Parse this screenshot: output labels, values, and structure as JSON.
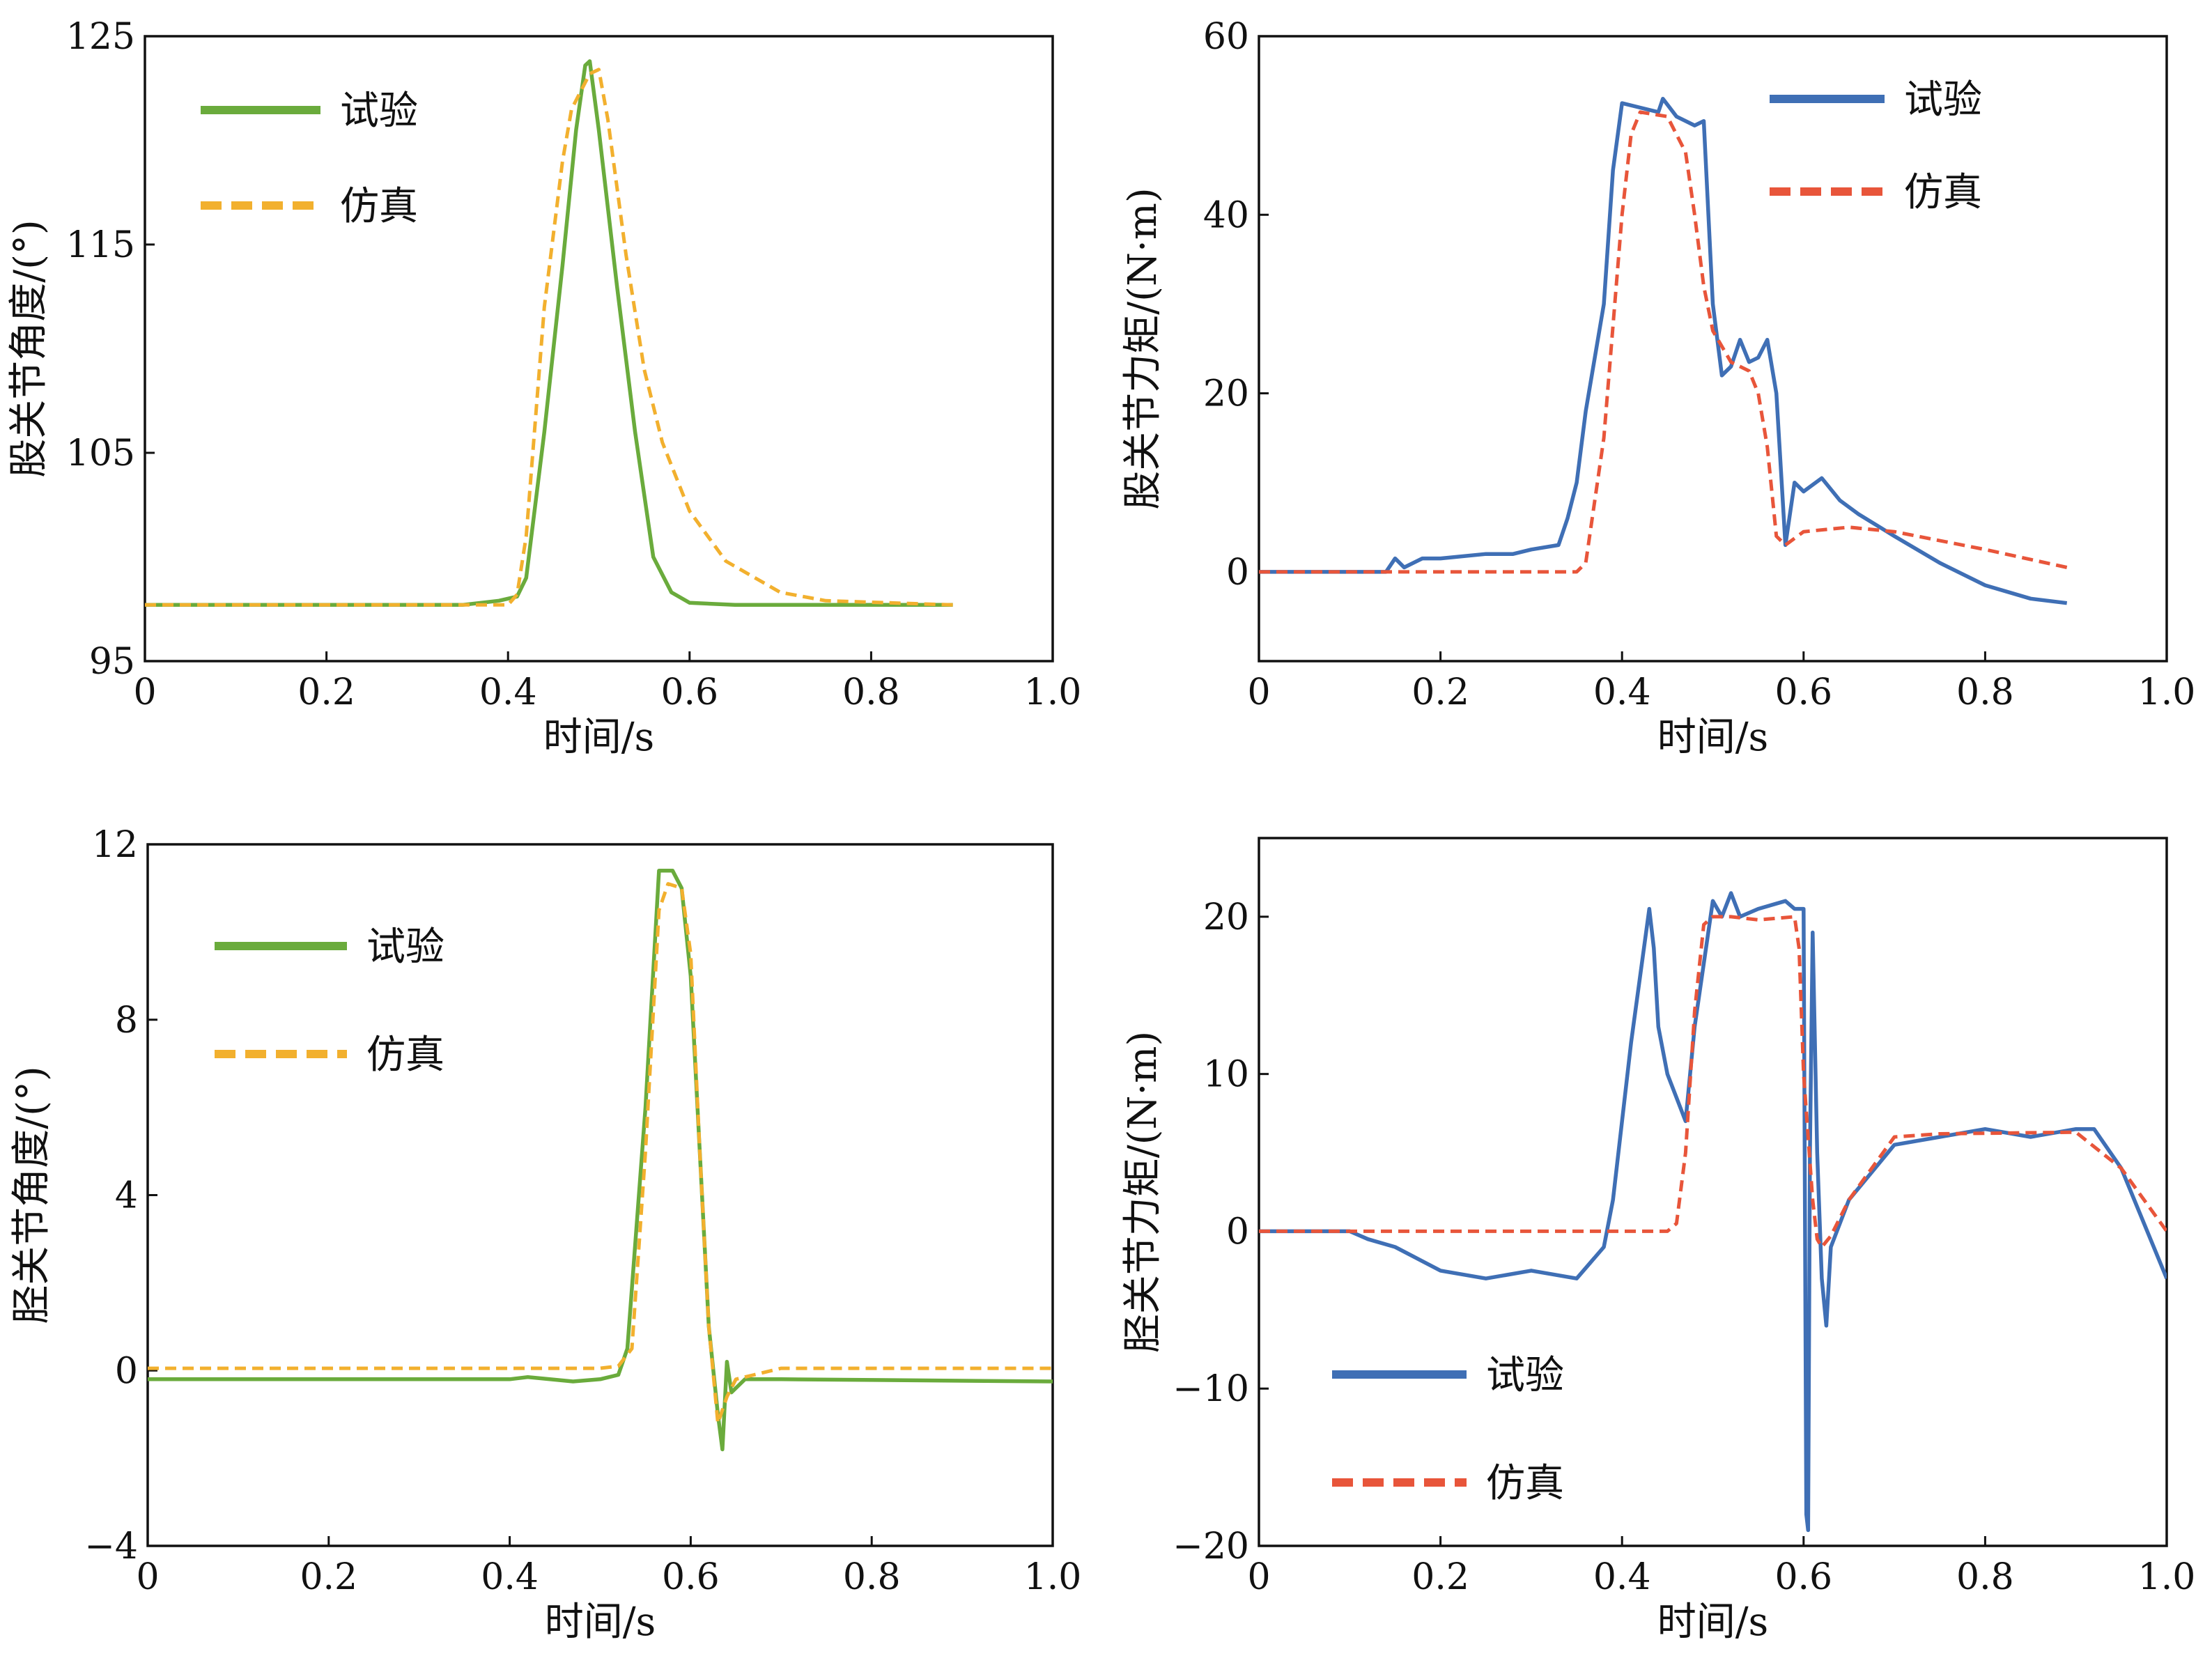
{
  "colors": {
    "hip_experiment": "#6aab3c",
    "hip_simulation": "#f2b02e",
    "torque_experiment": "#3f6fb5",
    "torque_simulation": "#e8553a"
  },
  "chart_data": [
    {
      "type": "line",
      "title": "",
      "xlabel": "时间/s",
      "ylabel": "股关节角度/(°)",
      "xlim": [
        0,
        1.0
      ],
      "ylim": [
        95,
        125
      ],
      "xticks": [
        0,
        0.2,
        0.4,
        0.6,
        0.8,
        1.0
      ],
      "xtick_labels": [
        "0",
        "0.2",
        "0.4",
        "0.6",
        "0.8",
        "1.0"
      ],
      "yticks": [
        95,
        105,
        115,
        125
      ],
      "ytick_labels": [
        "95",
        "105",
        "115",
        "125"
      ],
      "legend_position": "top-left",
      "series": [
        {
          "name": "试验",
          "color": "#6aab3c",
          "dash": false,
          "x": [
            0,
            0.35,
            0.39,
            0.41,
            0.42,
            0.44,
            0.46,
            0.475,
            0.485,
            0.49,
            0.5,
            0.52,
            0.54,
            0.56,
            0.58,
            0.6,
            0.65,
            0.89
          ],
          "y": [
            97.7,
            97.7,
            97.9,
            98.1,
            99,
            106,
            114,
            120.5,
            123.6,
            123.8,
            120.5,
            113,
            106,
            100,
            98.3,
            97.8,
            97.7,
            97.7
          ]
        },
        {
          "name": "仿真",
          "color": "#f2b02e",
          "dash": true,
          "x": [
            0,
            0.35,
            0.4,
            0.41,
            0.42,
            0.44,
            0.46,
            0.47,
            0.49,
            0.5,
            0.51,
            0.53,
            0.55,
            0.57,
            0.6,
            0.64,
            0.7,
            0.75,
            0.89
          ],
          "y": [
            97.7,
            97.7,
            97.7,
            98.2,
            101,
            112,
            119,
            121.5,
            123.2,
            123.4,
            121,
            114.5,
            109,
            105.5,
            102.2,
            99.8,
            98.3,
            97.9,
            97.7
          ]
        }
      ]
    },
    {
      "type": "line",
      "title": "",
      "xlabel": "时间/s",
      "ylabel": "股关节力矩/(N·m)",
      "xlim": [
        0,
        1.0
      ],
      "ylim": [
        -10,
        60
      ],
      "xticks": [
        0,
        0.2,
        0.4,
        0.6,
        0.8,
        1.0
      ],
      "xtick_labels": [
        "0",
        "0.2",
        "0.4",
        "0.6",
        "0.8",
        "1.0"
      ],
      "yticks": [
        0,
        20,
        40,
        60
      ],
      "ytick_labels": [
        "0",
        "20",
        "40",
        "60"
      ],
      "legend_position": "top-right",
      "series": [
        {
          "name": "试验",
          "color": "#3f6fb5",
          "dash": false,
          "x": [
            0,
            0.14,
            0.15,
            0.16,
            0.18,
            0.2,
            0.25,
            0.28,
            0.3,
            0.33,
            0.34,
            0.35,
            0.36,
            0.38,
            0.39,
            0.4,
            0.42,
            0.44,
            0.445,
            0.46,
            0.48,
            0.49,
            0.5,
            0.51,
            0.52,
            0.53,
            0.54,
            0.55,
            0.56,
            0.57,
            0.58,
            0.59,
            0.6,
            0.62,
            0.64,
            0.66,
            0.7,
            0.75,
            0.8,
            0.85,
            0.89
          ],
          "y": [
            0,
            0,
            1.5,
            0.5,
            1.5,
            1.5,
            2,
            2,
            2.5,
            3,
            6,
            10,
            18,
            30,
            45,
            52.5,
            52,
            51.5,
            53,
            51,
            50,
            50.5,
            30,
            22,
            23,
            26,
            23.5,
            24,
            26,
            20,
            3,
            10,
            9,
            10.5,
            8,
            6.5,
            4,
            1,
            -1.5,
            -3,
            -3.5
          ]
        },
        {
          "name": "仿真",
          "color": "#e8553a",
          "dash": true,
          "x": [
            0,
            0.35,
            0.36,
            0.38,
            0.4,
            0.41,
            0.42,
            0.45,
            0.47,
            0.48,
            0.49,
            0.5,
            0.52,
            0.54,
            0.55,
            0.56,
            0.57,
            0.58,
            0.6,
            0.65,
            0.7,
            0.8,
            0.89
          ],
          "y": [
            0,
            0,
            1,
            15,
            40,
            49,
            51.5,
            51,
            47,
            40,
            32,
            27,
            23.5,
            22.5,
            20,
            14,
            4,
            3,
            4.5,
            5,
            4.5,
            2.5,
            0.5
          ]
        }
      ]
    },
    {
      "type": "line",
      "title": "",
      "xlabel": "时间/s",
      "ylabel": "胫关节角度/(°)",
      "xlim": [
        0,
        1.0
      ],
      "ylim": [
        -4,
        12
      ],
      "xticks": [
        0,
        0.2,
        0.4,
        0.6,
        0.8,
        1.0
      ],
      "xtick_labels": [
        "0",
        "0.2",
        "0.4",
        "0.6",
        "0.8",
        "1.0"
      ],
      "yticks": [
        -4,
        0,
        4,
        8,
        12
      ],
      "ytick_labels": [
        "−4",
        "0",
        "4",
        "8",
        "12"
      ],
      "legend_position": "top-left",
      "series": [
        {
          "name": "试验",
          "color": "#6aab3c",
          "dash": false,
          "x": [
            0,
            0.4,
            0.42,
            0.47,
            0.5,
            0.52,
            0.53,
            0.55,
            0.565,
            0.58,
            0.59,
            0.6,
            0.61,
            0.62,
            0.63,
            0.635,
            0.64,
            0.645,
            0.66,
            0.7,
            1.0
          ],
          "y": [
            -0.2,
            -0.2,
            -0.15,
            -0.25,
            -0.2,
            -0.1,
            0.5,
            6,
            11.4,
            11.4,
            11,
            9,
            5,
            1,
            -1,
            -1.8,
            0.2,
            -0.5,
            -0.2,
            -0.2,
            -0.25
          ]
        },
        {
          "name": "仿真",
          "color": "#f2b02e",
          "dash": true,
          "x": [
            0,
            0.5,
            0.52,
            0.535,
            0.55,
            0.565,
            0.575,
            0.59,
            0.6,
            0.61,
            0.62,
            0.63,
            0.64,
            0.65,
            0.67,
            0.7,
            1.0
          ],
          "y": [
            0.05,
            0.05,
            0.1,
            0.5,
            5,
            10.5,
            11.1,
            11,
            9.5,
            5,
            1,
            -1.2,
            -0.6,
            -0.2,
            -0.1,
            0.05,
            0.05
          ]
        }
      ]
    },
    {
      "type": "line",
      "title": "",
      "xlabel": "时间/s",
      "ylabel": "胫关节力矩/(N·m)",
      "xlim": [
        0,
        1.0
      ],
      "ylim": [
        -20,
        25
      ],
      "xticks": [
        0,
        0.2,
        0.4,
        0.6,
        0.8,
        1.0
      ],
      "xtick_labels": [
        "0",
        "0.2",
        "0.4",
        "0.6",
        "0.8",
        "1.0"
      ],
      "yticks": [
        -20,
        -10,
        0,
        10,
        20
      ],
      "ytick_labels": [
        "−20",
        "−10",
        "0",
        "10",
        "20"
      ],
      "legend_position": "bottom-left",
      "series": [
        {
          "name": "试验",
          "color": "#3f6fb5",
          "dash": false,
          "x": [
            0,
            0.1,
            0.12,
            0.15,
            0.2,
            0.25,
            0.3,
            0.35,
            0.38,
            0.39,
            0.41,
            0.43,
            0.435,
            0.44,
            0.45,
            0.47,
            0.48,
            0.5,
            0.51,
            0.52,
            0.53,
            0.55,
            0.58,
            0.59,
            0.6,
            0.603,
            0.605,
            0.607,
            0.61,
            0.615,
            0.62,
            0.625,
            0.63,
            0.65,
            0.7,
            0.75,
            0.8,
            0.85,
            0.9,
            0.92,
            0.95,
            1.0
          ],
          "y": [
            0,
            0,
            -0.5,
            -1,
            -2.5,
            -3,
            -2.5,
            -3,
            -1,
            2,
            12,
            20.5,
            18,
            13,
            10,
            7,
            13,
            21,
            20,
            21.5,
            20,
            20.5,
            21,
            20.5,
            20.5,
            -18,
            -19,
            5,
            19,
            5,
            -3,
            -6,
            -1,
            2,
            5.5,
            6,
            6.5,
            6,
            6.5,
            6.5,
            4,
            -3
          ]
        },
        {
          "name": "仿真",
          "color": "#e8553a",
          "dash": true,
          "x": [
            0,
            0.4,
            0.45,
            0.46,
            0.47,
            0.48,
            0.49,
            0.5,
            0.52,
            0.55,
            0.59,
            0.595,
            0.6,
            0.61,
            0.615,
            0.62,
            0.63,
            0.65,
            0.7,
            0.75,
            0.9,
            0.95,
            1.0
          ],
          "y": [
            0,
            0,
            0,
            0.5,
            5,
            14,
            19.5,
            20,
            20,
            19.8,
            20,
            18,
            10,
            2,
            -0.5,
            -1,
            -0.3,
            2,
            6,
            6.2,
            6.3,
            4,
            0
          ]
        }
      ]
    }
  ]
}
